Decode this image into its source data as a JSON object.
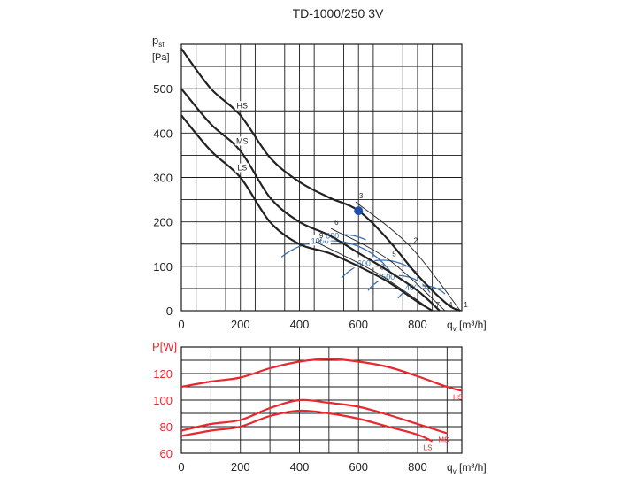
{
  "title": "TD-1000/250 3V",
  "colors": {
    "grid": "#1a1a1a",
    "curve": "#222222",
    "iso": "#3a6fb0",
    "power": "#e8282e",
    "point": "#1f4fa8"
  },
  "chart_data": [
    {
      "type": "line",
      "name": "pressure",
      "ylabel": "p_sf",
      "ylabel_unit": "[Pa]",
      "xlabel": "q_v [m³/h]",
      "xlim": [
        0,
        950
      ],
      "ylim": [
        0,
        600
      ],
      "xticks": [
        0,
        200,
        400,
        600,
        800
      ],
      "yticks": [
        0,
        100,
        200,
        300,
        400,
        500
      ],
      "series": [
        {
          "name": "HS",
          "points": [
            [
              0,
              590
            ],
            [
              100,
              500
            ],
            [
              200,
              440
            ],
            [
              300,
              345
            ],
            [
              400,
              290
            ],
            [
              500,
              255
            ],
            [
              600,
              225
            ],
            [
              700,
              160
            ],
            [
              800,
              80
            ],
            [
              900,
              15
            ],
            [
              945,
              0
            ]
          ]
        },
        {
          "name": "MS",
          "points": [
            [
              0,
              500
            ],
            [
              100,
              420
            ],
            [
              200,
              360
            ],
            [
              300,
              255
            ],
            [
              400,
              200
            ],
            [
              500,
              170
            ],
            [
              600,
              130
            ],
            [
              700,
              90
            ],
            [
              800,
              45
            ],
            [
              875,
              0
            ]
          ]
        },
        {
          "name": "LS",
          "points": [
            [
              0,
              440
            ],
            [
              100,
              360
            ],
            [
              200,
              300
            ],
            [
              300,
              200
            ],
            [
              400,
              150
            ],
            [
              500,
              130
            ],
            [
              600,
              100
            ],
            [
              700,
              65
            ],
            [
              800,
              20
            ],
            [
              850,
              0
            ]
          ]
        }
      ],
      "isolines": [
        {
          "label": "1000",
          "center": [
            500,
            0
          ],
          "radius": 250,
          "start": 130,
          "end": 30
        },
        {
          "label": "800",
          "center": [
            550,
            70
          ],
          "radius": 160,
          "start": 125,
          "end": 60
        },
        {
          "label": "600",
          "center": [
            680,
            0
          ],
          "radius": 180,
          "start": 140,
          "end": 50
        },
        {
          "label": "500",
          "center": [
            735,
            0
          ],
          "radius": 125,
          "start": 145,
          "end": 30
        },
        {
          "label": "400",
          "center": [
            820,
            -10
          ],
          "radius": 105,
          "start": 145,
          "end": 45
        }
      ],
      "operating_points": [
        {
          "label": "1",
          "x": 945,
          "y": 0
        },
        {
          "label": "2",
          "x": 775,
          "y": 145
        },
        {
          "label": "3",
          "x": 590,
          "y": 245
        },
        {
          "label": "4",
          "x": 893,
          "y": 0
        },
        {
          "label": "5",
          "x": 702,
          "y": 115
        },
        {
          "label": "6",
          "x": 507,
          "y": 185
        },
        {
          "label": "7",
          "x": 850,
          "y": 0
        },
        {
          "label": "8",
          "x": 662,
          "y": 85
        },
        {
          "label": "9",
          "x": 455,
          "y": 155
        }
      ],
      "highlight_point": {
        "x": 600,
        "y": 225
      }
    },
    {
      "type": "line",
      "name": "power",
      "ylabel": "P[W]",
      "xlabel": "q_v [m³/h]",
      "xlim": [
        0,
        950
      ],
      "ylim": [
        60,
        140
      ],
      "xticks": [
        0,
        200,
        400,
        600,
        800
      ],
      "yticks": [
        60,
        80,
        100,
        120
      ],
      "series": [
        {
          "name": "HS",
          "points": [
            [
              0,
              110
            ],
            [
              100,
              114
            ],
            [
              200,
              117
            ],
            [
              300,
              124
            ],
            [
              400,
              129
            ],
            [
              500,
              131
            ],
            [
              600,
              129
            ],
            [
              700,
              125
            ],
            [
              800,
              118
            ],
            [
              900,
              110
            ],
            [
              950,
              107
            ]
          ]
        },
        {
          "name": "MS",
          "points": [
            [
              0,
              77
            ],
            [
              100,
              82
            ],
            [
              200,
              85
            ],
            [
              300,
              94
            ],
            [
              400,
              100
            ],
            [
              500,
              98
            ],
            [
              600,
              95
            ],
            [
              700,
              89
            ],
            [
              800,
              82
            ],
            [
              900,
              75
            ]
          ]
        },
        {
          "name": "LS",
          "points": [
            [
              0,
              73
            ],
            [
              100,
              77
            ],
            [
              200,
              80
            ],
            [
              300,
              88
            ],
            [
              400,
              92
            ],
            [
              500,
              90
            ],
            [
              600,
              86
            ],
            [
              700,
              80
            ],
            [
              800,
              74
            ],
            [
              850,
              69
            ]
          ]
        }
      ]
    }
  ]
}
